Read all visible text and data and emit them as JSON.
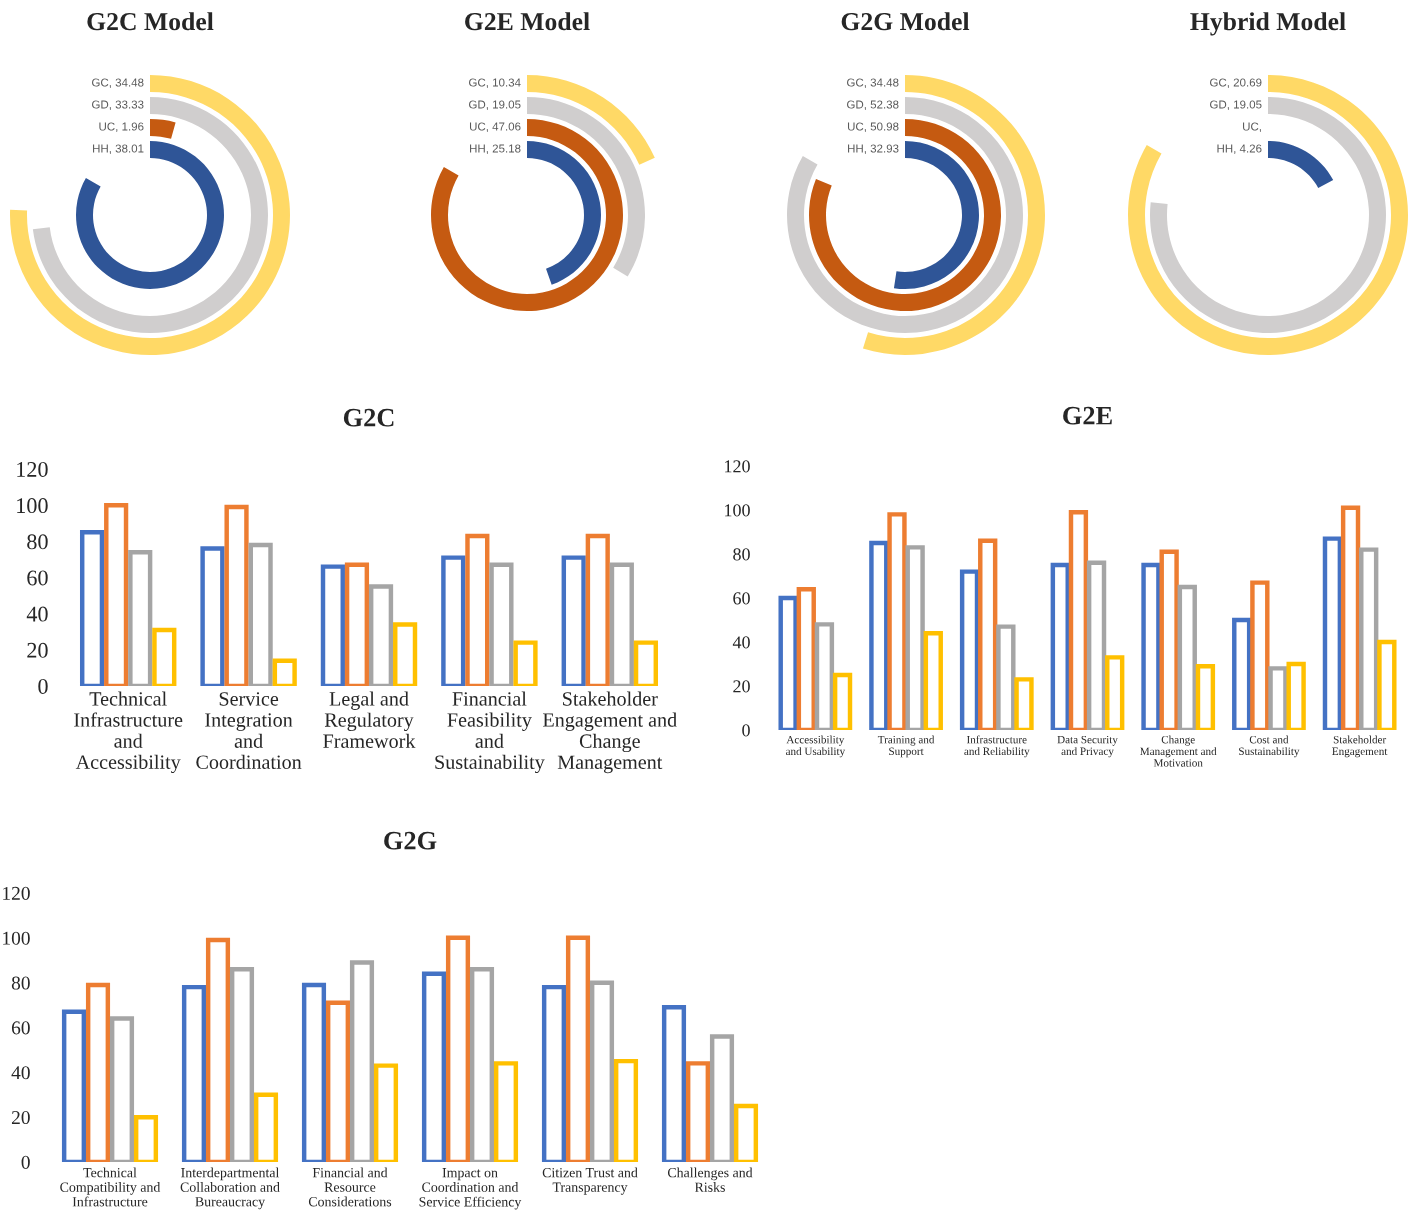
{
  "chart_data": [
    {
      "type": "other",
      "title": "G2C Model",
      "categories": [
        "GC",
        "GD",
        "UC",
        "HH"
      ],
      "values": [
        34.48,
        33.33,
        1.96,
        38.01
      ],
      "value_labels": [
        ", 34.48",
        ", 33.33",
        ", 1.96",
        ", 38.01"
      ],
      "colors": [
        "#ffd966",
        "#d0cece",
        "#c55a11",
        "#2f5597"
      ]
    },
    {
      "type": "other",
      "title": "G2E Model",
      "categories": [
        "GC",
        "GD",
        "UC",
        "HH"
      ],
      "values": [
        10.34,
        19.05,
        47.06,
        25.18
      ],
      "value_labels": [
        ", 10.34",
        ", 19.05",
        ", 47.06",
        ", 25.18"
      ],
      "colors": [
        "#ffd966",
        "#d0cece",
        "#c55a11",
        "#2f5597"
      ]
    },
    {
      "type": "other",
      "title": "G2G Model",
      "categories": [
        "GC",
        "GD",
        "UC",
        "HH"
      ],
      "values": [
        34.48,
        52.38,
        50.98,
        32.93
      ],
      "value_labels": [
        ", 34.48",
        ", 52.38",
        ", 50.98",
        ", 32.93"
      ],
      "colors": [
        "#ffd966",
        "#d0cece",
        "#c55a11",
        "#2f5597"
      ]
    },
    {
      "type": "other",
      "title": "Hybrid Model",
      "categories": [
        "GC",
        "GD",
        "UC",
        "HH"
      ],
      "values": [
        20.69,
        19.05,
        null,
        4.26
      ],
      "value_labels": [
        ", 20.69",
        ", 19.05",
        ",",
        ", 4.26"
      ],
      "colors": [
        "#ffd966",
        "#d0cece",
        "#c55a11",
        "#2f5597"
      ]
    },
    {
      "type": "bar",
      "title": "G2C",
      "categories": [
        "Technical Infrastructure and Accessibility",
        "Service Integration and Coordination",
        "Legal and Regulatory Framework",
        "Financial Feasibility and Sustainability",
        "Stakeholder Engagement and Change Management"
      ],
      "series": [
        {
          "color": "#4472c4",
          "values": [
            85,
            76,
            66,
            71,
            71
          ]
        },
        {
          "color": "#ed7d31",
          "values": [
            100,
            99,
            67,
            83,
            83
          ]
        },
        {
          "color": "#a5a5a5",
          "values": [
            74,
            78,
            55,
            67,
            67
          ]
        },
        {
          "color": "#ffc000",
          "values": [
            31,
            14,
            34,
            24,
            24
          ]
        }
      ],
      "ylim": [
        0,
        120
      ],
      "yticks": [
        0,
        20,
        40,
        60,
        80,
        100,
        120
      ],
      "grid": false
    },
    {
      "type": "bar",
      "title": "G2E",
      "categories": [
        "Accessibility and Usability",
        "Training and Support",
        "Infrastructure and Reliability",
        "Data Security and Privacy",
        "Change Management and Motivation",
        "Cost and Sustainability",
        "Stakeholder Engagement"
      ],
      "series": [
        {
          "color": "#4472c4",
          "values": [
            60,
            85,
            72,
            75,
            75,
            50,
            87
          ]
        },
        {
          "color": "#ed7d31",
          "values": [
            64,
            98,
            86,
            99,
            81,
            67,
            101
          ]
        },
        {
          "color": "#a5a5a5",
          "values": [
            48,
            83,
            47,
            76,
            65,
            28,
            82
          ]
        },
        {
          "color": "#ffc000",
          "values": [
            25,
            44,
            23,
            33,
            29,
            30,
            40
          ]
        }
      ],
      "ylim": [
        0,
        120
      ],
      "yticks": [
        0,
        20,
        40,
        60,
        80,
        100,
        120
      ],
      "grid": false
    },
    {
      "type": "bar",
      "title": "G2G",
      "categories": [
        "Technical Compatibility and Infrastructure",
        "Interdepartmental Collaboration and Bureaucracy",
        "Financial and Resource Considerations",
        "Impact on Coordination and Service Efficiency",
        "Citizen Trust and Transparency",
        "Challenges and Risks"
      ],
      "series": [
        {
          "color": "#4472c4",
          "values": [
            67,
            78,
            79,
            84,
            78,
            69
          ]
        },
        {
          "color": "#ed7d31",
          "values": [
            79,
            99,
            71,
            100,
            100,
            44
          ]
        },
        {
          "color": "#a5a5a5",
          "values": [
            64,
            86,
            89,
            86,
            80,
            56
          ]
        },
        {
          "color": "#ffc000",
          "values": [
            20,
            30,
            43,
            44,
            45,
            25
          ]
        }
      ],
      "ylim": [
        0,
        120
      ],
      "yticks": [
        0,
        20,
        40,
        60,
        80,
        100,
        120
      ],
      "grid": false
    }
  ]
}
